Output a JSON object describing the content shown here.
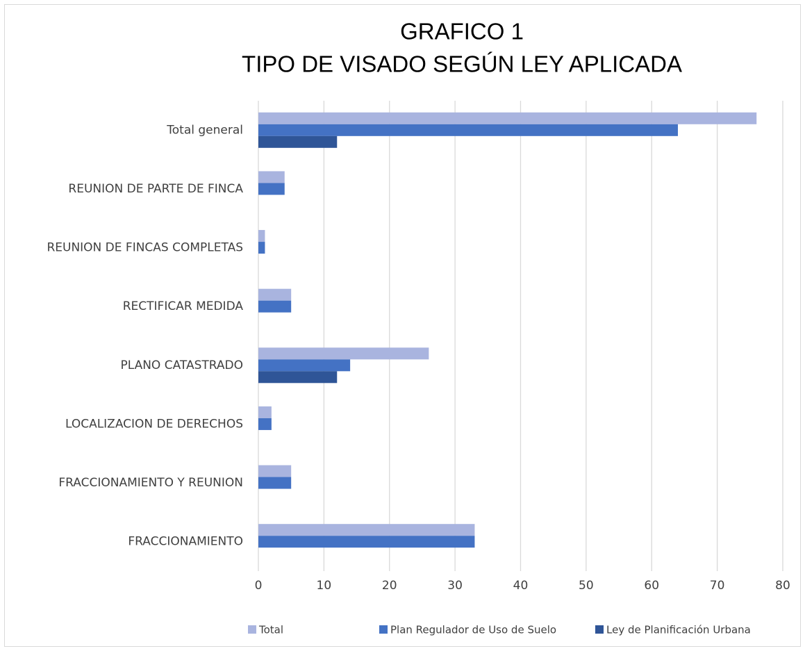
{
  "chart_data": {
    "type": "hbar",
    "title": [
      "GRAFICO 1",
      "TIPO DE VISADO SEGÚN LEY APLICADA"
    ],
    "categories": [
      "Total general",
      "REUNION DE PARTE DE FINCA",
      "REUNION DE FINCAS COMPLETAS",
      "RECTIFICAR MEDIDA",
      "PLANO CATASTRADO",
      "LOCALIZACION DE DERECHOS",
      "FRACCIONAMIENTO Y REUNION",
      "FRACCIONAMIENTO"
    ],
    "series": [
      {
        "name": "Total",
        "color": "#a9b4df",
        "values": [
          76,
          4,
          1,
          5,
          26,
          2,
          5,
          33
        ]
      },
      {
        "name": "Plan Regulador de Uso de Suelo",
        "color": "#4472c4",
        "values": [
          64,
          4,
          1,
          5,
          14,
          2,
          5,
          33
        ]
      },
      {
        "name": "Ley de Planificación Urbana",
        "color": "#2f5597",
        "values": [
          12,
          null,
          null,
          null,
          12,
          null,
          null,
          null
        ]
      }
    ],
    "xlim": [
      0,
      80
    ],
    "xticks": [
      0,
      10,
      20,
      30,
      40,
      50,
      60,
      70,
      80
    ],
    "grid": true,
    "legend": "bottom"
  }
}
